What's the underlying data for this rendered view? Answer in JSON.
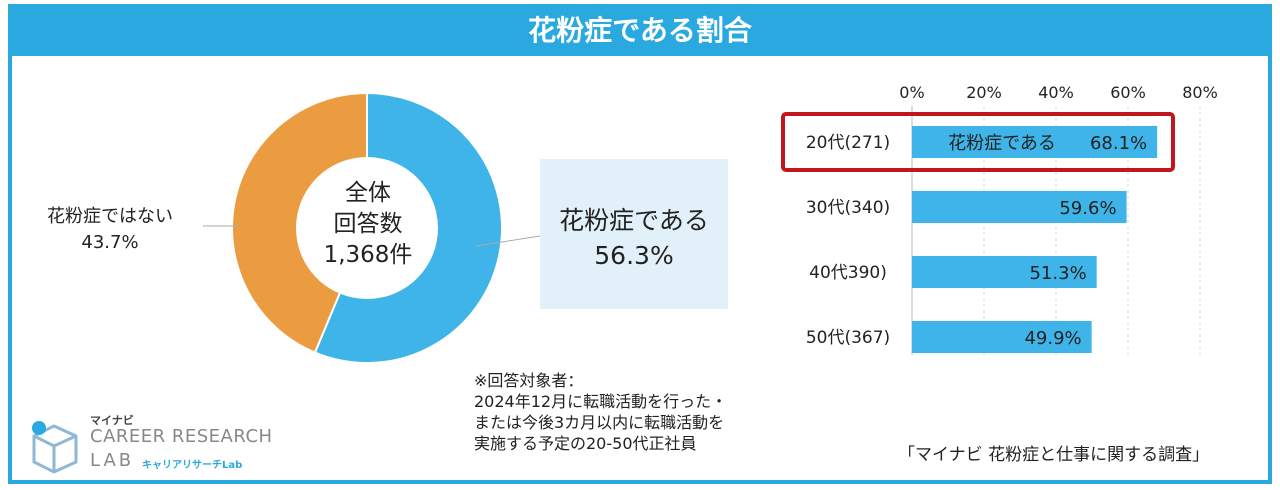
{
  "header": {
    "title": "花粉症である割合"
  },
  "chart_data": [
    {
      "type": "pie",
      "categories": [
        "花粉症である",
        "花粉症ではない"
      ],
      "values": [
        56.3,
        43.7
      ],
      "value_labels": [
        "56.3%",
        "43.7%"
      ],
      "center_label": [
        "全体",
        "回答数",
        "1,368件"
      ],
      "colors": [
        "#3eb4e8",
        "#ec9c40"
      ]
    },
    {
      "type": "bar",
      "orientation": "horizontal",
      "categories": [
        "20代(271)",
        "30代(340)",
        "40代390)",
        "50代(367)"
      ],
      "values": [
        68.1,
        59.6,
        51.3,
        49.9
      ],
      "value_labels": [
        "68.1%",
        "59.6%",
        "51.3%",
        "49.9%"
      ],
      "series_label": "花粉症である",
      "xlim": [
        0,
        80
      ],
      "x_ticks": [
        "0%",
        "20%",
        "40%",
        "60%",
        "80%"
      ],
      "highlighted_category": "20代(271)",
      "bar_color": "#3eb4e8",
      "highlight_color": "#c0161d"
    }
  ],
  "note": {
    "lines": [
      "※回答対象者：",
      "2024年12月に転職活動を行った・",
      "または今後3カ月以内に転職活動を",
      "実施する予定の20-50代正社員"
    ]
  },
  "source": "「マイナビ  花粉症と仕事に関する調査」",
  "logo": {
    "brand_small": "マイナビ",
    "main": "CAREER RESEARCH",
    "lab": "LAB",
    "kana": "キャリアリサーチLab"
  }
}
